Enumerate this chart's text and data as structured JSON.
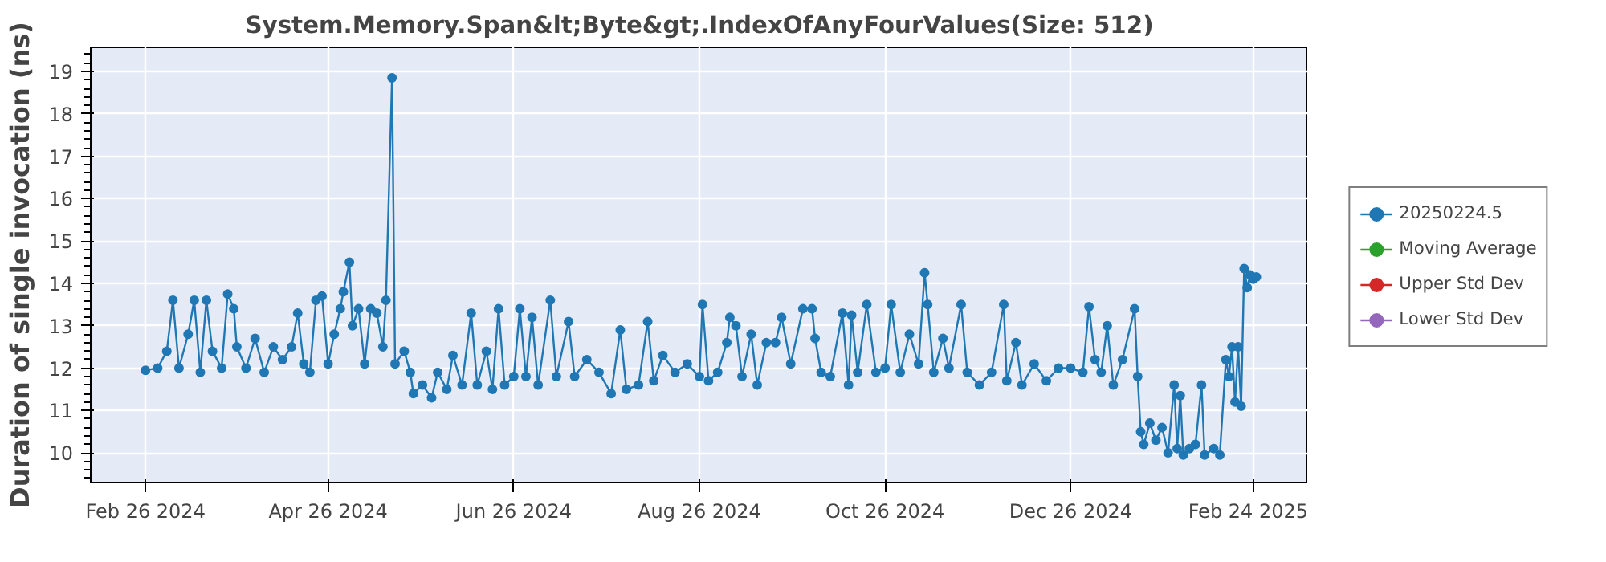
{
  "chart_data": {
    "type": "line",
    "title": "System.Memory.Span&lt;Byte&gt;.IndexOfAnyFourValues(Size: 512)",
    "ylabel": "Duration of single invocation (ns)",
    "x": [
      "2024-02-26",
      "2024-03-01",
      "2024-03-04",
      "2024-03-06",
      "2024-03-08",
      "2024-03-11",
      "2024-03-13",
      "2024-03-15",
      "2024-03-17",
      "2024-03-19",
      "2024-03-22",
      "2024-03-24",
      "2024-03-26",
      "2024-03-27",
      "2024-03-30",
      "2024-04-02",
      "2024-04-05",
      "2024-04-08",
      "2024-04-11",
      "2024-04-14",
      "2024-04-16",
      "2024-04-18",
      "2024-04-20",
      "2024-04-22",
      "2024-04-24",
      "2024-04-26",
      "2024-04-28",
      "2024-04-30",
      "2024-05-01",
      "2024-05-03",
      "2024-05-04",
      "2024-05-06",
      "2024-05-08",
      "2024-05-10",
      "2024-05-12",
      "2024-05-14",
      "2024-05-15",
      "2024-05-17",
      "2024-05-18",
      "2024-05-21",
      "2024-05-23",
      "2024-05-24",
      "2024-05-27",
      "2024-05-30",
      "2024-06-01",
      "2024-06-04",
      "2024-06-06",
      "2024-06-09",
      "2024-06-12",
      "2024-06-14",
      "2024-06-17",
      "2024-06-19",
      "2024-06-21",
      "2024-06-23",
      "2024-06-26",
      "2024-06-28",
      "2024-06-30",
      "2024-07-02",
      "2024-07-04",
      "2024-07-08",
      "2024-07-10",
      "2024-07-14",
      "2024-07-16",
      "2024-07-20",
      "2024-07-24",
      "2024-07-28",
      "2024-07-31",
      "2024-08-02",
      "2024-08-06",
      "2024-08-09",
      "2024-08-11",
      "2024-08-14",
      "2024-08-18",
      "2024-08-22",
      "2024-08-26",
      "2024-08-27",
      "2024-08-29",
      "2024-09-01",
      "2024-09-04",
      "2024-09-05",
      "2024-09-07",
      "2024-09-09",
      "2024-09-12",
      "2024-09-14",
      "2024-09-17",
      "2024-09-20",
      "2024-09-22",
      "2024-09-25",
      "2024-09-29",
      "2024-10-02",
      "2024-10-03",
      "2024-10-05",
      "2024-10-08",
      "2024-10-12",
      "2024-10-14",
      "2024-10-15",
      "2024-10-17",
      "2024-10-20",
      "2024-10-23",
      "2024-10-26",
      "2024-10-28",
      "2024-10-31",
      "2024-11-03",
      "2024-11-06",
      "2024-11-08",
      "2024-11-09",
      "2024-11-11",
      "2024-11-14",
      "2024-11-16",
      "2024-11-20",
      "2024-11-22",
      "2024-11-26",
      "2024-11-30",
      "2024-12-04",
      "2024-12-05",
      "2024-12-08",
      "2024-12-10",
      "2024-12-14",
      "2024-12-18",
      "2024-12-22",
      "2024-12-26",
      "2024-12-30",
      "2025-01-01",
      "2025-01-03",
      "2025-01-05",
      "2025-01-07",
      "2025-01-09",
      "2025-01-12",
      "2025-01-16",
      "2025-01-17",
      "2025-01-18",
      "2025-01-19",
      "2025-01-21",
      "2025-01-23",
      "2025-01-25",
      "2025-01-27",
      "2025-01-29",
      "2025-01-30",
      "2025-01-31",
      "2025-02-01",
      "2025-02-03",
      "2025-02-05",
      "2025-02-07",
      "2025-02-08",
      "2025-02-11",
      "2025-02-13",
      "2025-02-15",
      "2025-02-16",
      "2025-02-17",
      "2025-02-18",
      "2025-02-19",
      "2025-02-20",
      "2025-02-21",
      "2025-02-22",
      "2025-02-23",
      "2025-02-24",
      "2025-02-25"
    ],
    "series": [
      {
        "name": "20250224.5",
        "color": "#1f77b4",
        "values": [
          11.95,
          12.0,
          12.4,
          13.6,
          12.0,
          12.8,
          13.6,
          11.9,
          13.6,
          12.4,
          12.0,
          13.75,
          13.4,
          12.5,
          12.0,
          12.7,
          11.9,
          12.5,
          12.2,
          12.5,
          13.3,
          12.1,
          11.9,
          13.6,
          13.7,
          12.1,
          12.8,
          13.4,
          13.8,
          14.5,
          13.0,
          13.4,
          12.1,
          13.4,
          13.3,
          12.5,
          13.6,
          18.85,
          12.1,
          12.4,
          11.9,
          11.4,
          11.6,
          11.3,
          11.9,
          11.5,
          12.3,
          11.6,
          13.3,
          11.6,
          12.4,
          11.5,
          13.4,
          11.6,
          11.8,
          13.4,
          11.8,
          13.2,
          11.6,
          13.6,
          11.8,
          13.1,
          11.8,
          12.2,
          11.9,
          11.4,
          12.9,
          11.5,
          11.6,
          13.1,
          11.7,
          12.3,
          11.9,
          12.1,
          11.8,
          13.5,
          11.7,
          11.9,
          12.6,
          13.2,
          13.0,
          11.8,
          12.8,
          11.6,
          12.6,
          12.6,
          13.2,
          12.1,
          13.4,
          13.4,
          12.7,
          11.9,
          11.8,
          13.3,
          11.6,
          13.25,
          11.9,
          13.5,
          11.9,
          12.0,
          13.5,
          11.9,
          12.8,
          12.1,
          14.25,
          13.5,
          11.9,
          12.7,
          12.0,
          13.5,
          11.9,
          11.6,
          11.9,
          13.5,
          11.7,
          12.6,
          11.6,
          12.1,
          11.7,
          12.0,
          12.0,
          11.9,
          13.45,
          12.2,
          11.9,
          13.0,
          11.6,
          12.2,
          13.4,
          11.8,
          10.5,
          10.2,
          10.7,
          10.3,
          10.6,
          10.0,
          11.6,
          10.1,
          11.35,
          9.95,
          10.1,
          10.2,
          11.6,
          9.95,
          10.1,
          9.95,
          12.2,
          11.8,
          12.5,
          11.2,
          12.5,
          11.1,
          14.35,
          13.9,
          14.2,
          14.1,
          14.15
        ]
      },
      {
        "name": "Moving Average",
        "color": "#2ca02c",
        "values": [
          null,
          null,
          null,
          null,
          null,
          null,
          null,
          null,
          null,
          null,
          null,
          null,
          null,
          null,
          null,
          null,
          null,
          null,
          null,
          null,
          null,
          null,
          null,
          null,
          null,
          null,
          null,
          null,
          null,
          null,
          null,
          null,
          null,
          null,
          null,
          null,
          null,
          null,
          null,
          null,
          null,
          null,
          null,
          null,
          null,
          null,
          null,
          null,
          null,
          null,
          null,
          null,
          null,
          null,
          null,
          null,
          null,
          null,
          null,
          null,
          null,
          null,
          null,
          null,
          null,
          null,
          null,
          null,
          null,
          null,
          null,
          null,
          null,
          null,
          null,
          null,
          null,
          null,
          null,
          null,
          null,
          null,
          null,
          null,
          null,
          null,
          null,
          null,
          null,
          null,
          null,
          null,
          null,
          null,
          null,
          null,
          null,
          null,
          null,
          null,
          null,
          null,
          null,
          null,
          null,
          null,
          null,
          null,
          null,
          null,
          null,
          null,
          null,
          null,
          null,
          null,
          null,
          null,
          null,
          null,
          null,
          null,
          null,
          null,
          null,
          null,
          null,
          null,
          null,
          null,
          null,
          null,
          null,
          null,
          null,
          null,
          null,
          null,
          null,
          null,
          null,
          null,
          null,
          null,
          null,
          null,
          null,
          null,
          null,
          null,
          null,
          null,
          null,
          null,
          null,
          null,
          null
        ]
      },
      {
        "name": "Upper Std Dev",
        "color": "#d62728",
        "values": [
          null,
          null,
          null,
          null,
          null,
          null,
          null,
          null,
          null,
          null,
          null,
          null,
          null,
          null,
          null,
          null,
          null,
          null,
          null,
          null,
          null,
          null,
          null,
          null,
          null,
          null,
          null,
          null,
          null,
          null,
          null,
          null,
          null,
          null,
          null,
          null,
          null,
          null,
          null,
          null,
          null,
          null,
          null,
          null,
          null,
          null,
          null,
          null,
          null,
          null,
          null,
          null,
          null,
          null,
          null,
          null,
          null,
          null,
          null,
          null,
          null,
          null,
          null,
          null,
          null,
          null,
          null,
          null,
          null,
          null,
          null,
          null,
          null,
          null,
          null,
          null,
          null,
          null,
          null,
          null,
          null,
          null,
          null,
          null,
          null,
          null,
          null,
          null,
          null,
          null,
          null,
          null,
          null,
          null,
          null,
          null,
          null,
          null,
          null,
          null,
          null,
          null,
          null,
          null,
          null,
          null,
          null,
          null,
          null,
          null,
          null,
          null,
          null,
          null,
          null,
          null,
          null,
          null,
          null,
          null,
          null,
          null,
          null,
          null,
          null,
          null,
          null,
          null,
          null,
          null,
          null,
          null,
          null,
          null,
          null,
          null,
          null,
          null,
          null,
          null,
          null,
          null,
          null,
          null,
          null,
          null,
          null,
          null,
          null,
          null,
          null,
          null,
          null,
          null,
          null,
          null,
          null
        ]
      },
      {
        "name": "Lower Std Dev",
        "color": "#9467bd",
        "values": [
          null,
          null,
          null,
          null,
          null,
          null,
          null,
          null,
          null,
          null,
          null,
          null,
          null,
          null,
          null,
          null,
          null,
          null,
          null,
          null,
          null,
          null,
          null,
          null,
          null,
          null,
          null,
          null,
          null,
          null,
          null,
          null,
          null,
          null,
          null,
          null,
          null,
          null,
          null,
          null,
          null,
          null,
          null,
          null,
          null,
          null,
          null,
          null,
          null,
          null,
          null,
          null,
          null,
          null,
          null,
          null,
          null,
          null,
          null,
          null,
          null,
          null,
          null,
          null,
          null,
          null,
          null,
          null,
          null,
          null,
          null,
          null,
          null,
          null,
          null,
          null,
          null,
          null,
          null,
          null,
          null,
          null,
          null,
          null,
          null,
          null,
          null,
          null,
          null,
          null,
          null,
          null,
          null,
          null,
          null,
          null,
          null,
          null,
          null,
          null,
          null,
          null,
          null,
          null,
          null,
          null,
          null,
          null,
          null,
          null,
          null,
          null,
          null,
          null,
          null,
          null,
          null,
          null,
          null,
          null,
          null,
          null,
          null,
          null,
          null,
          null,
          null,
          null,
          null,
          null,
          null,
          null,
          null,
          null,
          null,
          null,
          null,
          null,
          null,
          null,
          null,
          null,
          null,
          null,
          null,
          null,
          null,
          null,
          null,
          null,
          null,
          null,
          null,
          null,
          null,
          null,
          null
        ]
      }
    ],
    "xlim": [
      "2024-02-08",
      "2025-03-14"
    ],
    "xticks": [
      {
        "value": "2024-02-26",
        "label": "Feb 26 2024"
      },
      {
        "value": "2024-04-26",
        "label": "Apr 26 2024"
      },
      {
        "value": "2024-06-26",
        "label": "Jun 26 2024"
      },
      {
        "value": "2024-08-26",
        "label": "Aug 26 2024"
      },
      {
        "value": "2024-10-26",
        "label": "Oct 26 2024"
      },
      {
        "value": "2024-12-26",
        "label": "Dec 26 2024"
      },
      {
        "value": "2025-02-24",
        "label": "Feb 24 2025"
      }
    ],
    "ylim": [
      9.3,
      19.57
    ],
    "yticks": [
      10,
      11,
      12,
      13,
      14,
      15,
      16,
      17,
      18,
      19
    ],
    "grid": true,
    "legend": "right",
    "marker": "circle",
    "line_style": "solid"
  }
}
